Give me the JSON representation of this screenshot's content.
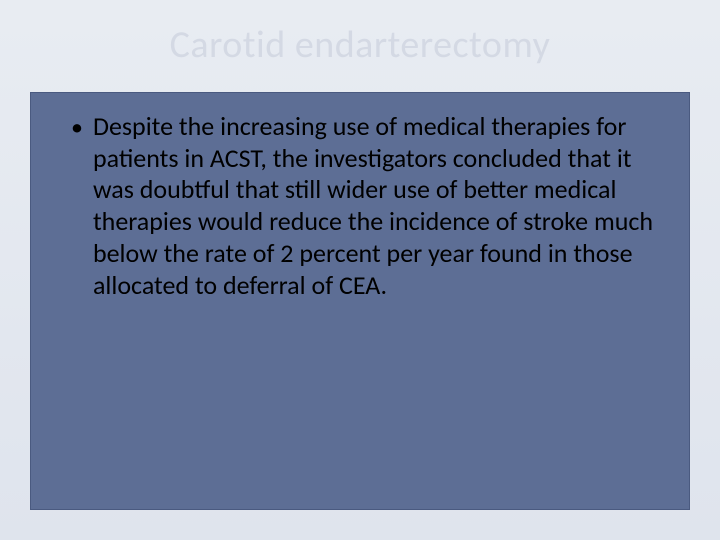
{
  "slide": {
    "title": "Carotid endarterectomy",
    "bullets": [
      "Despite the increasing use of medical therapies for patients in ACST, the investigators concluded that it was doubtful that still wider use of better medical therapies would reduce the incidence of stroke much below the rate of 2 percent per year found in those allocated to deferral of CEA."
    ],
    "style": {
      "background_gradient_top": "#e8ecf2",
      "background_gradient_bottom": "#dfe4ed",
      "title_color": "#d4d9e4",
      "title_fontsize": 38,
      "content_box_fill": "#5d6e95",
      "content_box_border": "#4a5a80",
      "bullet_text_color": "#000000",
      "bullet_fontsize": 26,
      "bullet_marker": "•"
    }
  }
}
